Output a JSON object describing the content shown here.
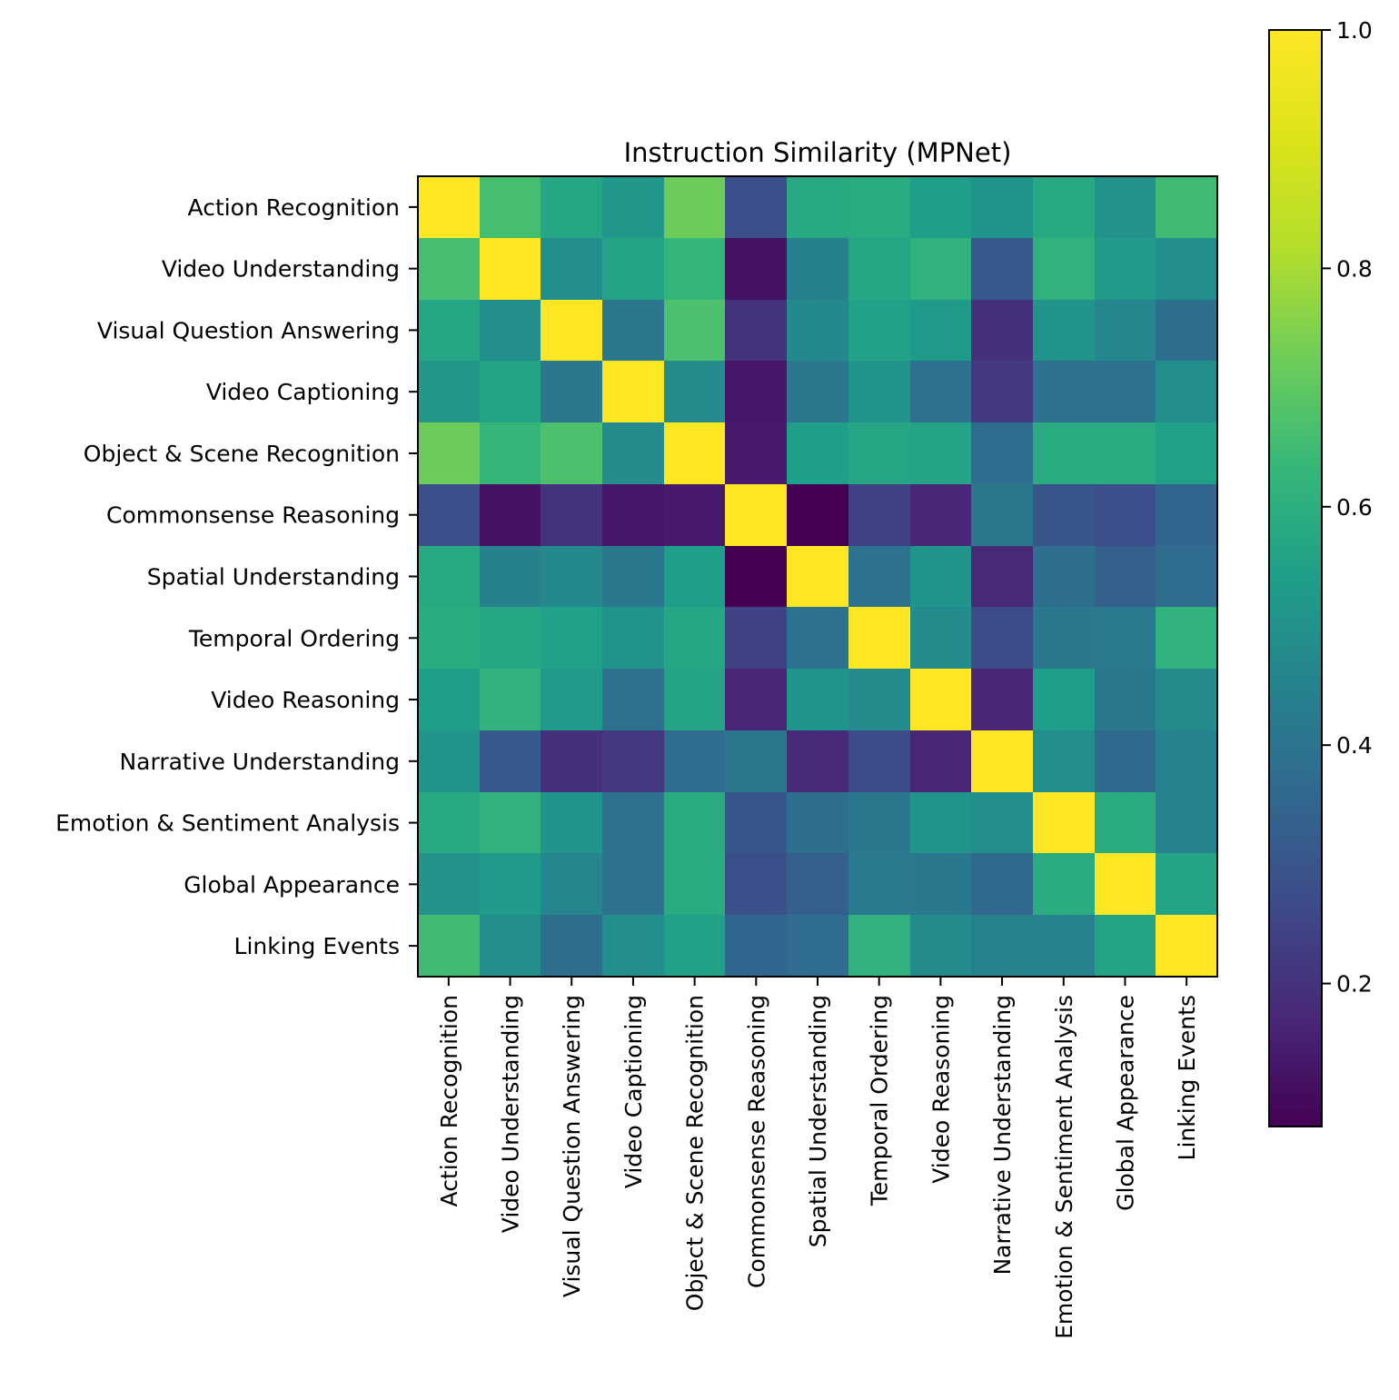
{
  "chart_data": {
    "type": "heatmap",
    "title": "Instruction Similarity (MPNet)",
    "xlabel": "",
    "ylabel": "",
    "categories": [
      "Action Recognition",
      "Video Understanding",
      "Visual Question Answering",
      "Video Captioning",
      "Object & Scene Recognition",
      "Commonsense Reasoning",
      "Spatial Understanding",
      "Temporal Ordering",
      "Video Reasoning",
      "Narrative Understanding",
      "Emotion & Sentiment Analysis",
      "Global Appearance",
      "Linking Events"
    ],
    "values": [
      [
        1.0,
        0.66,
        0.57,
        0.52,
        0.72,
        0.28,
        0.58,
        0.59,
        0.54,
        0.51,
        0.58,
        0.5,
        0.65
      ],
      [
        0.66,
        1.0,
        0.49,
        0.56,
        0.63,
        0.12,
        0.44,
        0.57,
        0.61,
        0.31,
        0.61,
        0.53,
        0.49
      ],
      [
        0.57,
        0.49,
        1.0,
        0.41,
        0.67,
        0.2,
        0.47,
        0.55,
        0.53,
        0.19,
        0.51,
        0.46,
        0.38
      ],
      [
        0.52,
        0.56,
        0.41,
        1.0,
        0.48,
        0.13,
        0.41,
        0.51,
        0.39,
        0.22,
        0.39,
        0.39,
        0.49
      ],
      [
        0.72,
        0.63,
        0.67,
        0.48,
        1.0,
        0.14,
        0.54,
        0.57,
        0.56,
        0.37,
        0.59,
        0.59,
        0.55
      ],
      [
        0.28,
        0.12,
        0.2,
        0.13,
        0.14,
        1.0,
        0.08,
        0.24,
        0.17,
        0.41,
        0.3,
        0.28,
        0.35
      ],
      [
        0.58,
        0.44,
        0.47,
        0.41,
        0.54,
        0.08,
        1.0,
        0.39,
        0.51,
        0.18,
        0.38,
        0.33,
        0.37
      ],
      [
        0.59,
        0.57,
        0.55,
        0.51,
        0.57,
        0.24,
        0.39,
        1.0,
        0.48,
        0.27,
        0.41,
        0.42,
        0.61
      ],
      [
        0.54,
        0.61,
        0.53,
        0.39,
        0.56,
        0.17,
        0.51,
        0.48,
        1.0,
        0.17,
        0.54,
        0.41,
        0.48
      ],
      [
        0.51,
        0.31,
        0.19,
        0.22,
        0.37,
        0.41,
        0.18,
        0.27,
        0.17,
        1.0,
        0.49,
        0.36,
        0.45
      ],
      [
        0.58,
        0.61,
        0.51,
        0.39,
        0.59,
        0.3,
        0.38,
        0.41,
        0.51,
        0.49,
        1.0,
        0.59,
        0.45
      ],
      [
        0.5,
        0.53,
        0.46,
        0.39,
        0.59,
        0.28,
        0.33,
        0.42,
        0.41,
        0.36,
        0.59,
        1.0,
        0.56
      ],
      [
        0.65,
        0.49,
        0.38,
        0.49,
        0.55,
        0.35,
        0.37,
        0.61,
        0.48,
        0.45,
        0.45,
        0.56,
        1.0
      ]
    ],
    "vmin": 0.08,
    "vmax": 1.0,
    "colormap": "viridis",
    "colorbar": {
      "ticks": [
        0.2,
        0.4,
        0.6,
        0.8,
        1.0
      ],
      "tick_labels": [
        "0.2",
        "0.4",
        "0.6",
        "0.8",
        "1.0"
      ],
      "placement": "right"
    },
    "grid": false
  }
}
